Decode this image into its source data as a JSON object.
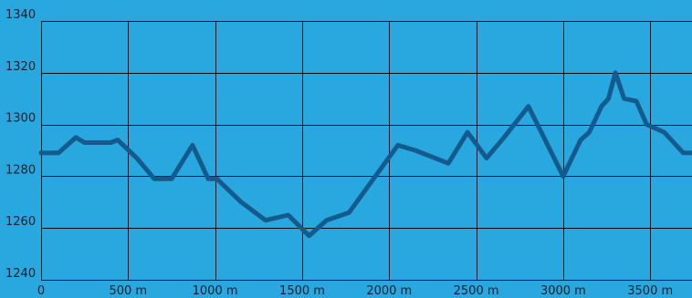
{
  "colors": {
    "background": "#29a8e0",
    "grid": "#0b0b0b",
    "line": "#145a8d",
    "text": "#0f1f2e"
  },
  "chart_data": {
    "type": "line",
    "title": "",
    "xlabel": "",
    "ylabel": "",
    "xlim": [
      0,
      3740
    ],
    "ylim": [
      1240,
      1340
    ],
    "grid": true,
    "legend": "none",
    "x_ticks": [
      0,
      500,
      1000,
      1500,
      2000,
      2500,
      3000,
      3500
    ],
    "x_tick_labels": [
      "0",
      "500 m",
      "1000 m",
      "1500 m",
      "2000 m",
      "2500 m",
      "3000 m",
      "3500 m"
    ],
    "y_ticks": [
      1240,
      1260,
      1280,
      1300,
      1320,
      1340
    ],
    "y_tick_labels": [
      "1240",
      "1260",
      "1280",
      "1300",
      "1320",
      "1340"
    ],
    "series": [
      {
        "x": [
          0,
          100,
          200,
          250,
          300,
          400,
          440,
          550,
          650,
          750,
          870,
          960,
          1010,
          1150,
          1290,
          1420,
          1540,
          1640,
          1770,
          2050,
          2150,
          2340,
          2450,
          2560,
          2660,
          2800,
          3000,
          3100,
          3150,
          3220,
          3260,
          3300,
          3350,
          3420,
          3480,
          3580,
          3690,
          3740
        ],
        "y": [
          1289,
          1289,
          1295,
          1293,
          1293,
          1293,
          1294,
          1287,
          1279,
          1279,
          1292,
          1279,
          1279,
          1270,
          1263,
          1265,
          1257,
          1263,
          1266,
          1292,
          1290,
          1285,
          1297,
          1287,
          1295,
          1307,
          1280,
          1294,
          1297,
          1307,
          1310,
          1320,
          1310,
          1309,
          1300,
          1297,
          1289,
          1289
        ]
      }
    ]
  }
}
